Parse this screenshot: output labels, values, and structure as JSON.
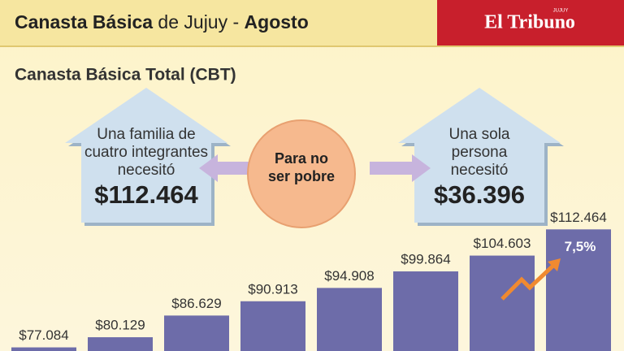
{
  "header": {
    "title_parts": [
      "Canasta Básica",
      " de Jujuy - ",
      "Agosto"
    ],
    "brand": "El Tribuno",
    "brand_region": "JUJUY"
  },
  "subtitle": "Canasta Básica Total (CBT)",
  "left_house": {
    "lines": [
      "Una familia de",
      "cuatro integrantes",
      "necesitó"
    ],
    "amount": "$112.464"
  },
  "center": {
    "lines": [
      "Para no",
      "ser pobre"
    ]
  },
  "right_house": {
    "lines": [
      "Una sola",
      "persona",
      "necesitó"
    ],
    "amount": "$36.396"
  },
  "chart_data": {
    "type": "bar",
    "values": [
      77084,
      80129,
      86629,
      90913,
      94908,
      99864,
      104603,
      112464
    ],
    "value_labels": [
      "$77.084",
      "$80.129",
      "$86.629",
      "$90.913",
      "$94.908",
      "$99.864",
      "$104.603",
      "$112.464"
    ],
    "color": "#6d6ca9",
    "ylim": [
      76000,
      114000
    ],
    "annotation": "7,5%"
  }
}
